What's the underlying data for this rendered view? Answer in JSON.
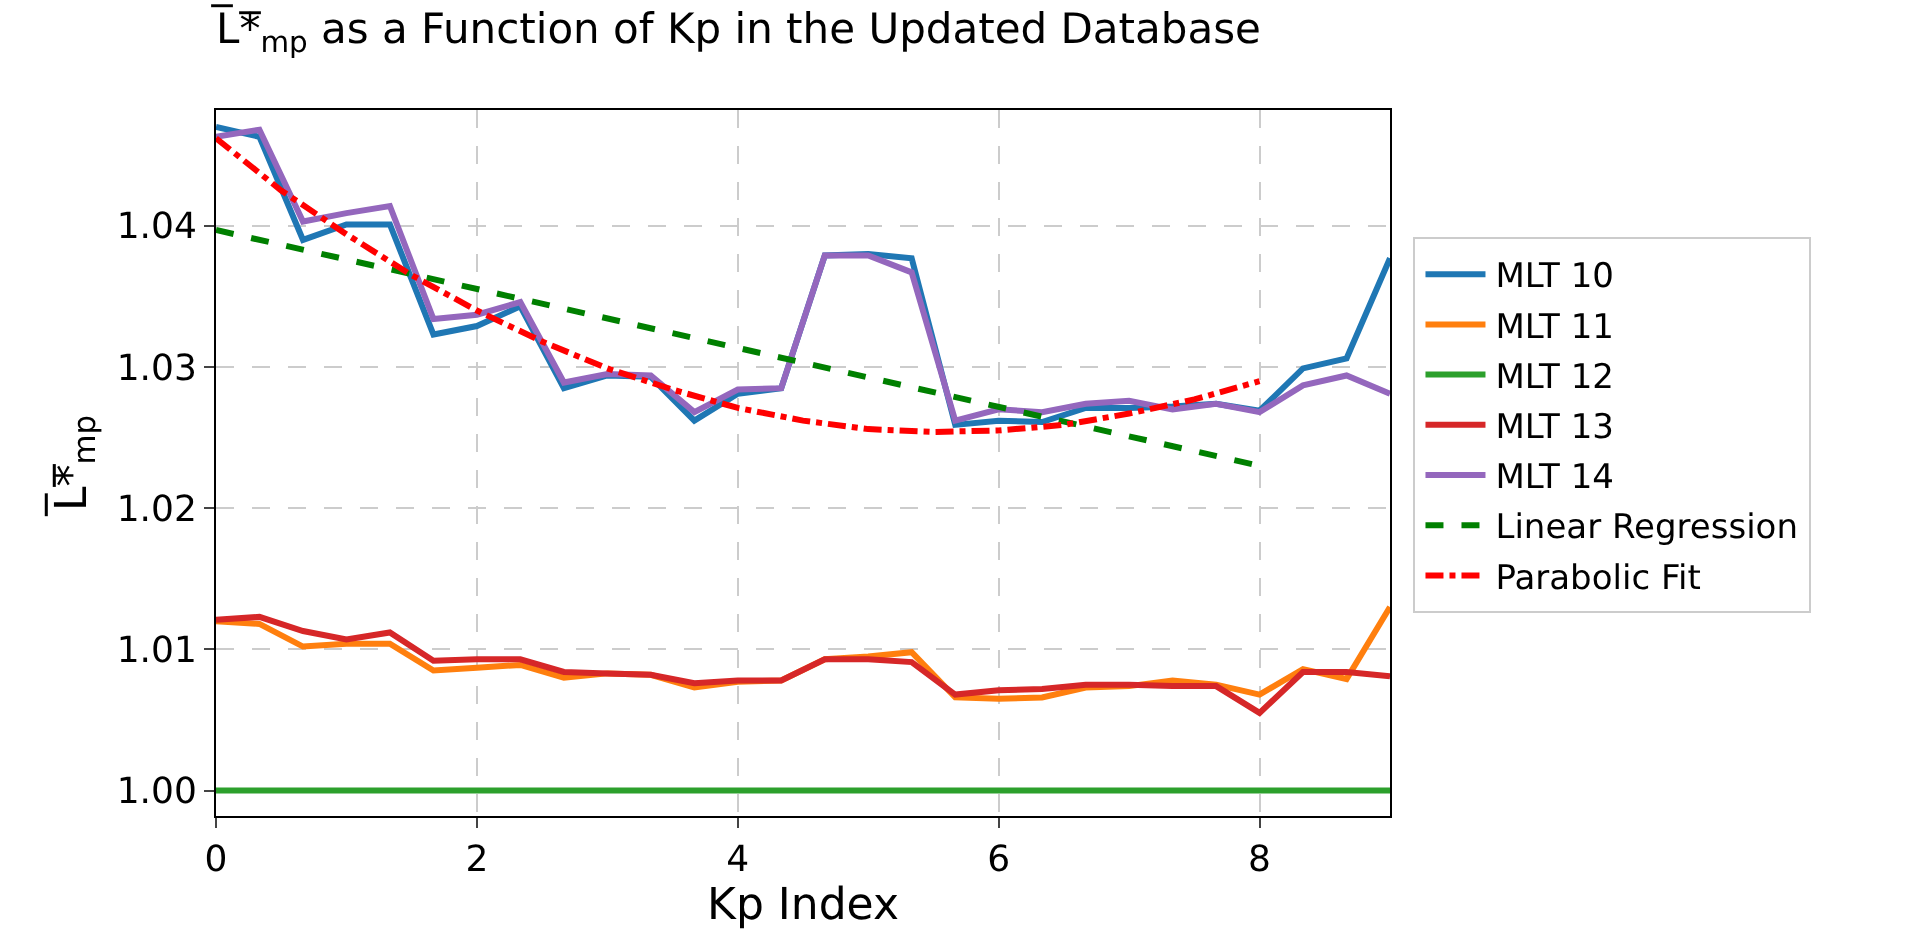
{
  "chart_data": {
    "type": "line",
    "title": "L̅*̅$_{mp}$ as a Function of Kp in the Updated Database",
    "xlabel": "Kp Index",
    "ylabel": "L̅*̅$_{mp}$",
    "x": [
      0,
      0.333,
      0.667,
      1,
      1.333,
      1.667,
      2,
      2.333,
      2.667,
      3,
      3.333,
      3.667,
      4,
      4.333,
      4.667,
      5,
      5.333,
      5.667,
      6,
      6.333,
      6.667,
      7,
      7.333,
      7.667,
      8,
      8.333,
      8.667,
      9
    ],
    "series": [
      {
        "name": "MLT 10",
        "color": "#1f77b4",
        "values": [
          1.047,
          1.0463,
          1.039,
          1.0401,
          1.0401,
          1.0323,
          1.0329,
          1.0343,
          1.0285,
          1.0294,
          1.0293,
          1.0262,
          1.0281,
          1.0285,
          1.0379,
          1.038,
          1.0377,
          1.0259,
          1.0262,
          1.0261,
          1.0271,
          1.0271,
          1.0272,
          1.0274,
          1.0269,
          1.0299,
          1.0306,
          1.0377
        ]
      },
      {
        "name": "MLT 11",
        "color": "#ff7f0e",
        "values": [
          1.012,
          1.0118,
          1.0102,
          1.0104,
          1.0104,
          1.0085,
          1.0087,
          1.0089,
          1.008,
          1.0083,
          1.0082,
          1.0073,
          1.0077,
          1.0078,
          1.0093,
          1.0095,
          1.0098,
          1.0066,
          1.0065,
          1.0066,
          1.0073,
          1.0074,
          1.0078,
          1.0075,
          1.0068,
          1.0086,
          1.0079,
          1.013
        ]
      },
      {
        "name": "MLT 12",
        "color": "#2ca02c",
        "values": [
          1,
          1,
          1,
          1,
          1,
          1,
          1,
          1,
          1,
          1,
          1,
          1,
          1,
          1,
          1,
          1,
          1,
          1,
          1,
          1,
          1,
          1,
          1,
          1,
          1,
          1,
          1,
          1
        ]
      },
      {
        "name": "MLT 13",
        "color": "#d62728",
        "values": [
          1.0121,
          1.0123,
          1.0113,
          1.0107,
          1.0112,
          1.0092,
          1.0093,
          1.0093,
          1.0084,
          1.0083,
          1.0082,
          1.0076,
          1.0078,
          1.0078,
          1.0093,
          1.0093,
          1.0091,
          1.0068,
          1.0071,
          1.0072,
          1.0075,
          1.0075,
          1.0074,
          1.0074,
          1.0055,
          1.0084,
          1.0084,
          1.0081
        ]
      },
      {
        "name": "MLT 14",
        "color": "#9467bd",
        "values": [
          1.0463,
          1.0468,
          1.0403,
          1.0409,
          1.0414,
          1.0334,
          1.0337,
          1.0346,
          1.0289,
          1.0295,
          1.0294,
          1.0268,
          1.0284,
          1.0285,
          1.0379,
          1.0379,
          1.0367,
          1.0262,
          1.027,
          1.0268,
          1.0274,
          1.0276,
          1.027,
          1.0274,
          1.0268,
          1.0287,
          1.0294,
          1.0281
        ]
      },
      {
        "name": "Linear Regression",
        "color": "#008000",
        "line_style": "dashed",
        "x": [
          0,
          8
        ],
        "values": [
          1.0397,
          1.023
        ]
      },
      {
        "name": "Parabolic Fit",
        "color": "#ff0000",
        "line_style": "dashdot",
        "x": [
          0,
          0.5,
          1,
          1.5,
          2,
          2.5,
          3,
          3.5,
          4,
          4.5,
          5,
          5.5,
          6,
          6.5,
          7,
          7.5,
          8
        ],
        "values": [
          1.0462,
          1.0425,
          1.0394,
          1.0365,
          1.034,
          1.0318,
          1.0299,
          1.0284,
          1.0271,
          1.0262,
          1.0256,
          1.0254,
          1.0255,
          1.0259,
          1.0267,
          1.0277,
          1.029
        ]
      }
    ],
    "xlim": [
      0,
      9
    ],
    "xticks": [
      0,
      2,
      4,
      6,
      8
    ],
    "ylim": [
      0.9982,
      1.0482
    ],
    "yticks": [
      {
        "value": 1,
        "label": "1.00"
      },
      {
        "value": 1.01,
        "label": "1.01"
      },
      {
        "value": 1.02,
        "label": "1.02"
      },
      {
        "value": 1.03,
        "label": "1.03"
      },
      {
        "value": 1.04,
        "label": "1.04"
      }
    ],
    "grid": true,
    "legend": "right",
    "marker": "none",
    "line_style": "solid"
  }
}
